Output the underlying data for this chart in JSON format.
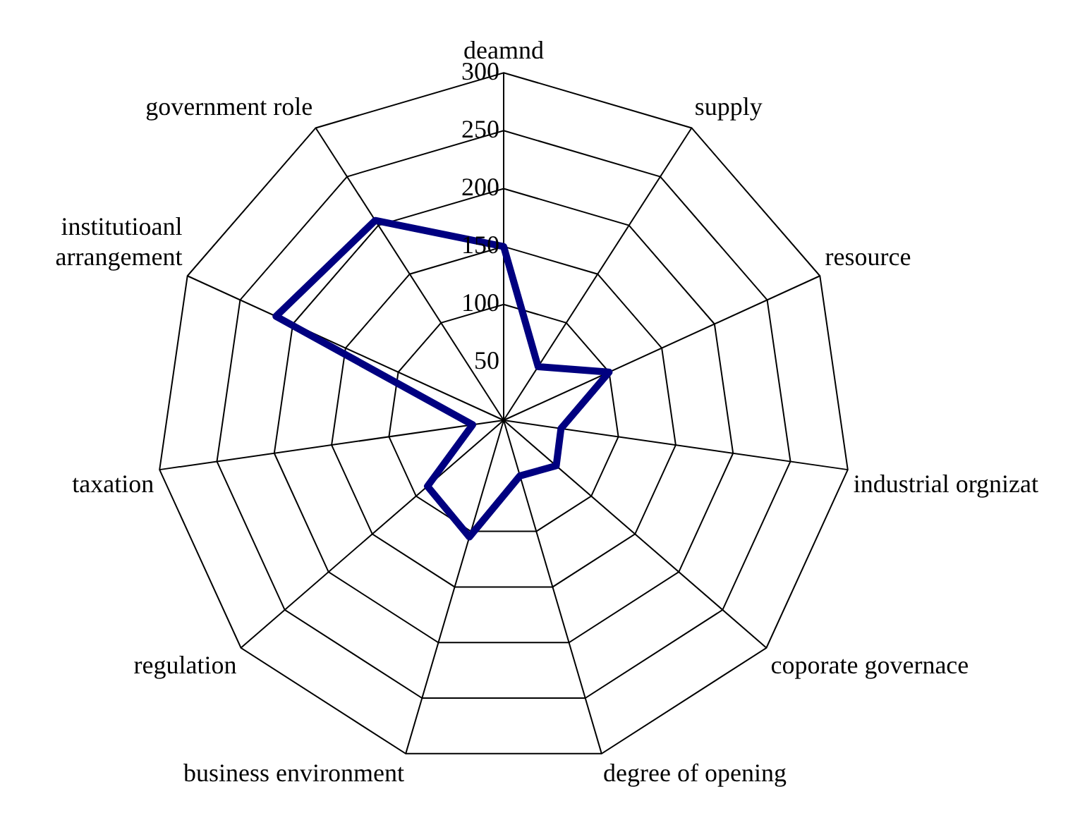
{
  "chart_data": {
    "type": "radar",
    "categories": [
      "deamnd",
      "supply",
      "resource",
      "industrial orgnizat",
      "coporate governace",
      "degree of opening",
      "business environment",
      "regulation",
      "taxation",
      "institutioanl arrangement",
      "government role"
    ],
    "series": [
      {
        "color": "#000080",
        "values": [
          150,
          55,
          100,
          50,
          60,
          50,
          105,
          87,
          27,
          216,
          205
        ]
      }
    ],
    "ylim": [
      0,
      300
    ],
    "yticks": [
      50,
      100,
      150,
      200,
      250,
      300
    ],
    "grid": true,
    "legend": false,
    "marker": "none"
  }
}
